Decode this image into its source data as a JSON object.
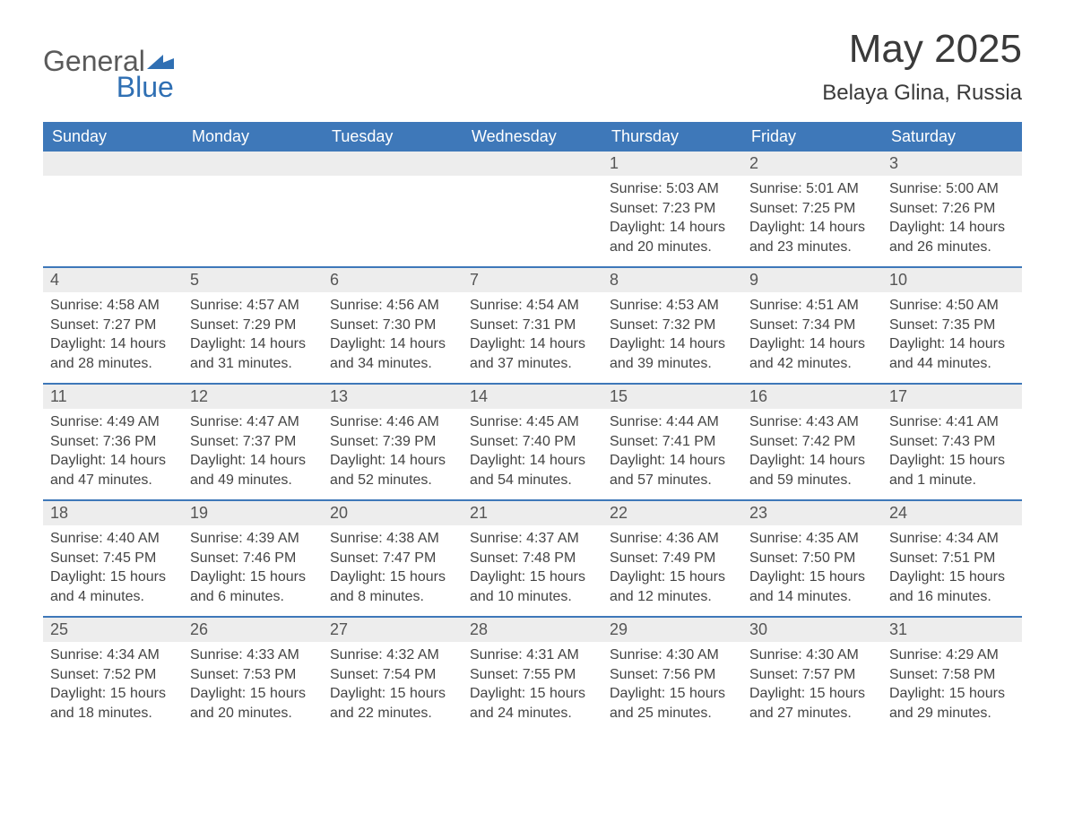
{
  "logo": {
    "word1": "General",
    "word2": "Blue"
  },
  "title": "May 2025",
  "subtitle": "Belaya Glina, Russia",
  "colors": {
    "header_bg": "#3e78b9",
    "header_text": "#ffffff",
    "daynum_bg": "#ededed",
    "daynum_text": "#555555",
    "body_text": "#444444",
    "rule": "#3e78b9",
    "logo_gray": "#5a5a5a",
    "logo_blue": "#2f6fb3"
  },
  "day_headers": [
    "Sunday",
    "Monday",
    "Tuesday",
    "Wednesday",
    "Thursday",
    "Friday",
    "Saturday"
  ],
  "weeks": [
    [
      {
        "blank": true
      },
      {
        "blank": true
      },
      {
        "blank": true
      },
      {
        "blank": true
      },
      {
        "n": "1",
        "sunrise": "5:03 AM",
        "sunset": "7:23 PM",
        "daylight": "14 hours and 20 minutes."
      },
      {
        "n": "2",
        "sunrise": "5:01 AM",
        "sunset": "7:25 PM",
        "daylight": "14 hours and 23 minutes."
      },
      {
        "n": "3",
        "sunrise": "5:00 AM",
        "sunset": "7:26 PM",
        "daylight": "14 hours and 26 minutes."
      }
    ],
    [
      {
        "n": "4",
        "sunrise": "4:58 AM",
        "sunset": "7:27 PM",
        "daylight": "14 hours and 28 minutes."
      },
      {
        "n": "5",
        "sunrise": "4:57 AM",
        "sunset": "7:29 PM",
        "daylight": "14 hours and 31 minutes."
      },
      {
        "n": "6",
        "sunrise": "4:56 AM",
        "sunset": "7:30 PM",
        "daylight": "14 hours and 34 minutes."
      },
      {
        "n": "7",
        "sunrise": "4:54 AM",
        "sunset": "7:31 PM",
        "daylight": "14 hours and 37 minutes."
      },
      {
        "n": "8",
        "sunrise": "4:53 AM",
        "sunset": "7:32 PM",
        "daylight": "14 hours and 39 minutes."
      },
      {
        "n": "9",
        "sunrise": "4:51 AM",
        "sunset": "7:34 PM",
        "daylight": "14 hours and 42 minutes."
      },
      {
        "n": "10",
        "sunrise": "4:50 AM",
        "sunset": "7:35 PM",
        "daylight": "14 hours and 44 minutes."
      }
    ],
    [
      {
        "n": "11",
        "sunrise": "4:49 AM",
        "sunset": "7:36 PM",
        "daylight": "14 hours and 47 minutes."
      },
      {
        "n": "12",
        "sunrise": "4:47 AM",
        "sunset": "7:37 PM",
        "daylight": "14 hours and 49 minutes."
      },
      {
        "n": "13",
        "sunrise": "4:46 AM",
        "sunset": "7:39 PM",
        "daylight": "14 hours and 52 minutes."
      },
      {
        "n": "14",
        "sunrise": "4:45 AM",
        "sunset": "7:40 PM",
        "daylight": "14 hours and 54 minutes."
      },
      {
        "n": "15",
        "sunrise": "4:44 AM",
        "sunset": "7:41 PM",
        "daylight": "14 hours and 57 minutes."
      },
      {
        "n": "16",
        "sunrise": "4:43 AM",
        "sunset": "7:42 PM",
        "daylight": "14 hours and 59 minutes."
      },
      {
        "n": "17",
        "sunrise": "4:41 AM",
        "sunset": "7:43 PM",
        "daylight": "15 hours and 1 minute."
      }
    ],
    [
      {
        "n": "18",
        "sunrise": "4:40 AM",
        "sunset": "7:45 PM",
        "daylight": "15 hours and 4 minutes."
      },
      {
        "n": "19",
        "sunrise": "4:39 AM",
        "sunset": "7:46 PM",
        "daylight": "15 hours and 6 minutes."
      },
      {
        "n": "20",
        "sunrise": "4:38 AM",
        "sunset": "7:47 PM",
        "daylight": "15 hours and 8 minutes."
      },
      {
        "n": "21",
        "sunrise": "4:37 AM",
        "sunset": "7:48 PM",
        "daylight": "15 hours and 10 minutes."
      },
      {
        "n": "22",
        "sunrise": "4:36 AM",
        "sunset": "7:49 PM",
        "daylight": "15 hours and 12 minutes."
      },
      {
        "n": "23",
        "sunrise": "4:35 AM",
        "sunset": "7:50 PM",
        "daylight": "15 hours and 14 minutes."
      },
      {
        "n": "24",
        "sunrise": "4:34 AM",
        "sunset": "7:51 PM",
        "daylight": "15 hours and 16 minutes."
      }
    ],
    [
      {
        "n": "25",
        "sunrise": "4:34 AM",
        "sunset": "7:52 PM",
        "daylight": "15 hours and 18 minutes."
      },
      {
        "n": "26",
        "sunrise": "4:33 AM",
        "sunset": "7:53 PM",
        "daylight": "15 hours and 20 minutes."
      },
      {
        "n": "27",
        "sunrise": "4:32 AM",
        "sunset": "7:54 PM",
        "daylight": "15 hours and 22 minutes."
      },
      {
        "n": "28",
        "sunrise": "4:31 AM",
        "sunset": "7:55 PM",
        "daylight": "15 hours and 24 minutes."
      },
      {
        "n": "29",
        "sunrise": "4:30 AM",
        "sunset": "7:56 PM",
        "daylight": "15 hours and 25 minutes."
      },
      {
        "n": "30",
        "sunrise": "4:30 AM",
        "sunset": "7:57 PM",
        "daylight": "15 hours and 27 minutes."
      },
      {
        "n": "31",
        "sunrise": "4:29 AM",
        "sunset": "7:58 PM",
        "daylight": "15 hours and 29 minutes."
      }
    ]
  ],
  "labels": {
    "sunrise": "Sunrise: ",
    "sunset": "Sunset: ",
    "daylight": "Daylight: "
  }
}
